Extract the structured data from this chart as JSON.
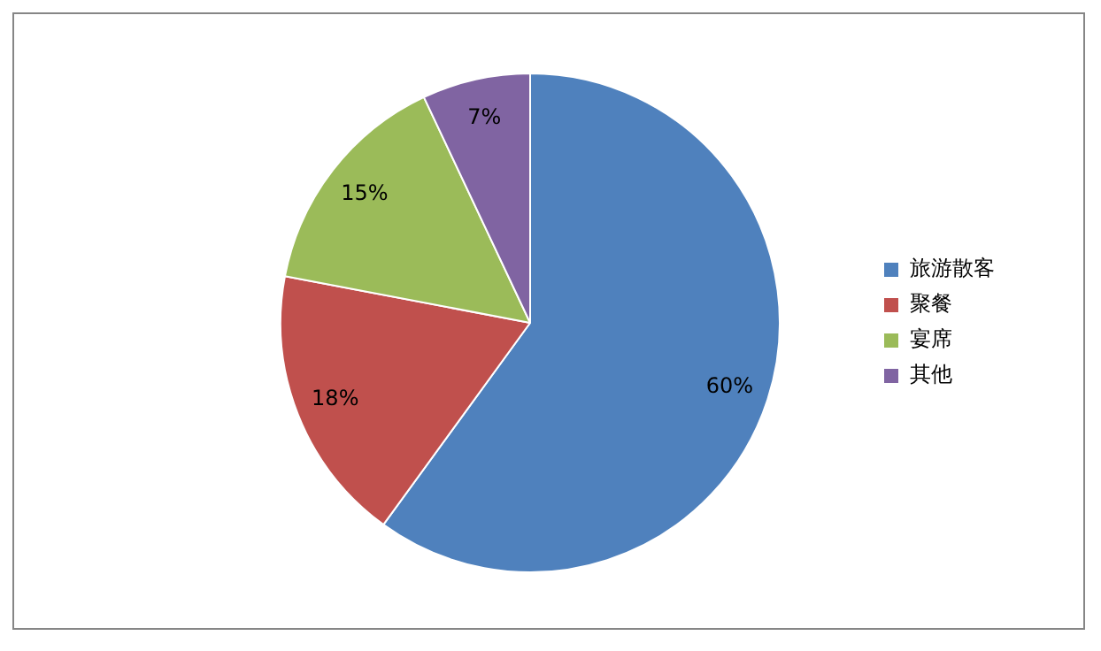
{
  "chart_data": {
    "type": "pie",
    "categories": [
      "旅游散客",
      "聚餐",
      "宴席",
      "其他"
    ],
    "values": [
      60,
      18,
      15,
      7
    ],
    "colors": [
      "#4f81bd",
      "#c0504d",
      "#9bbb59",
      "#8064a2"
    ],
    "value_labels": [
      "60%",
      "18%",
      "15%",
      "7%"
    ],
    "legend": "right"
  }
}
